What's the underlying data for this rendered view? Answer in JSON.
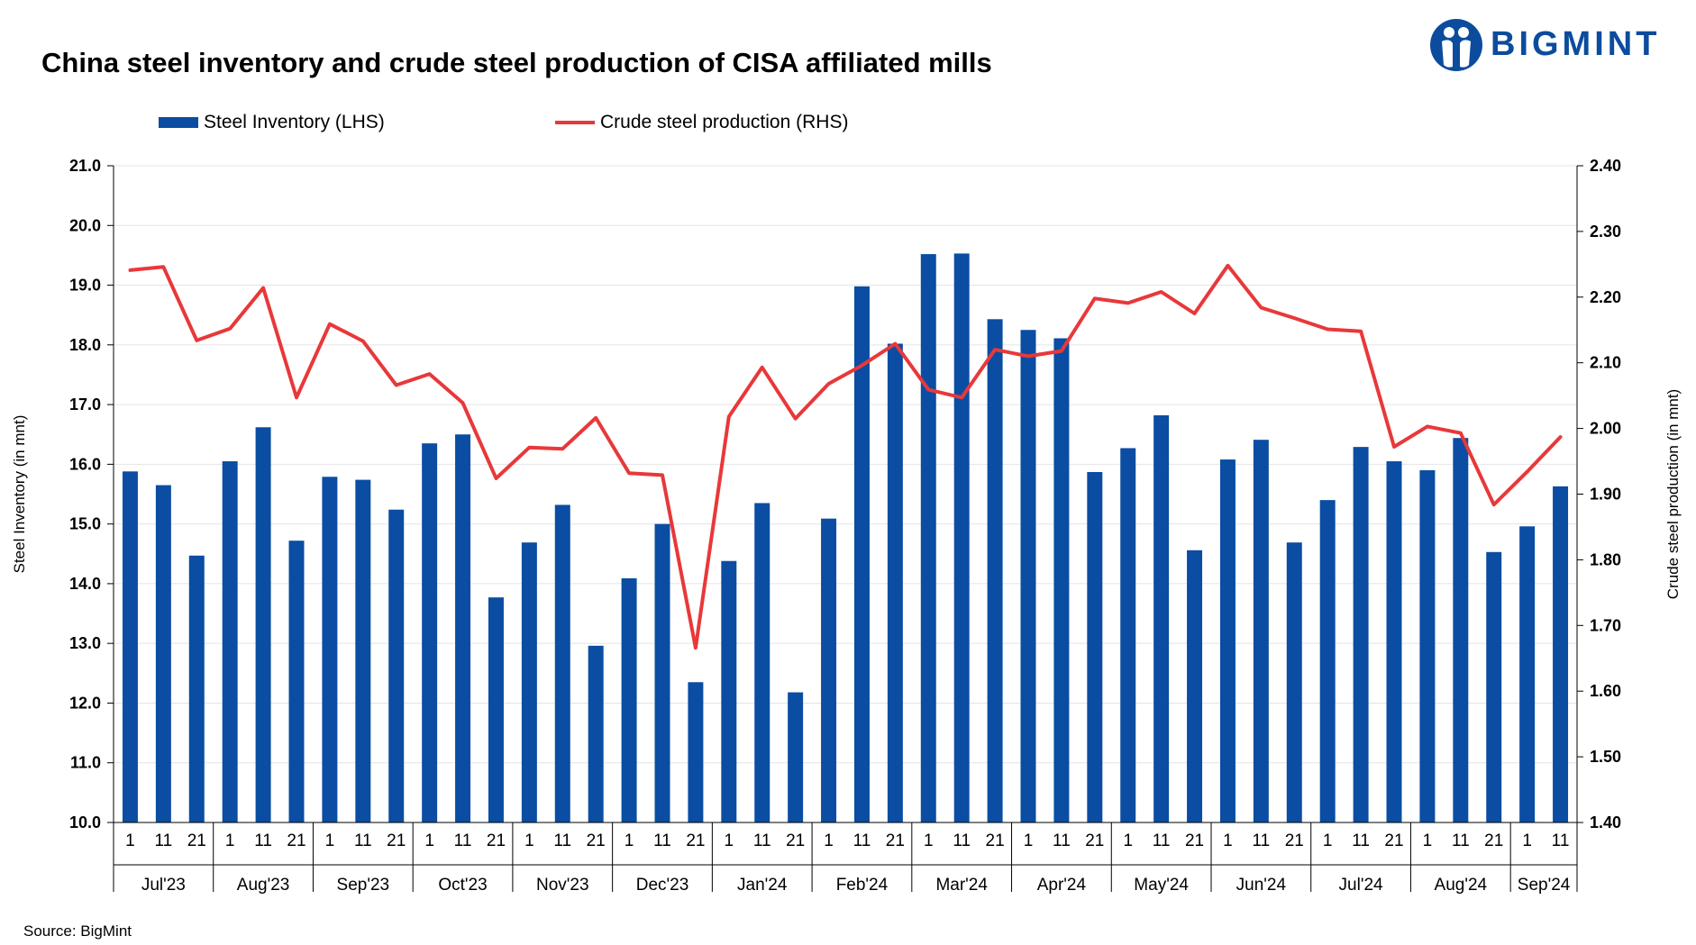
{
  "title": "China steel inventory and crude steel production of CISA affiliated mills",
  "brand": "BIGMINT",
  "source": "Source: BigMint",
  "colors": {
    "bars": "#0a4da2",
    "line": "#e8383a",
    "brand": "#0b4c9d"
  },
  "chart_data": {
    "type": "bar",
    "title": "China steel inventory and crude steel production of CISA affiliated mills",
    "legend_position": "top-left",
    "grid": true,
    "ylabel_left": "Steel Inventory (in mnt)",
    "ylabel_right": "Crude steel production (in mnt)",
    "ylim_left": [
      10,
      21
    ],
    "ylim_right": [
      1.4,
      2.4
    ],
    "yticks_left": [
      "10.0",
      "11.0",
      "12.0",
      "13.0",
      "14.0",
      "15.0",
      "16.0",
      "17.0",
      "18.0",
      "19.0",
      "20.0",
      "21.0"
    ],
    "yticks_right": [
      "1.40",
      "1.50",
      "1.60",
      "1.70",
      "1.80",
      "1.90",
      "2.00",
      "2.10",
      "2.20",
      "2.30",
      "2.40"
    ],
    "months": [
      {
        "label": "Jul'23",
        "days": [
          "1",
          "11",
          "21"
        ]
      },
      {
        "label": "Aug'23",
        "days": [
          "1",
          "11",
          "21"
        ]
      },
      {
        "label": "Sep'23",
        "days": [
          "1",
          "11",
          "21"
        ]
      },
      {
        "label": "Oct'23",
        "days": [
          "1",
          "11",
          "21"
        ]
      },
      {
        "label": "Nov'23",
        "days": [
          "1",
          "11",
          "21"
        ]
      },
      {
        "label": "Dec'23",
        "days": [
          "1",
          "11",
          "21"
        ]
      },
      {
        "label": "Jan'24",
        "days": [
          "1",
          "11",
          "21"
        ]
      },
      {
        "label": "Feb'24",
        "days": [
          "1",
          "11",
          "21"
        ]
      },
      {
        "label": "Mar'24",
        "days": [
          "1",
          "11",
          "21"
        ]
      },
      {
        "label": "Apr'24",
        "days": [
          "1",
          "11",
          "21"
        ]
      },
      {
        "label": "May'24",
        "days": [
          "1",
          "11",
          "21"
        ]
      },
      {
        "label": "Jun'24",
        "days": [
          "1",
          "11",
          "21"
        ]
      },
      {
        "label": "Jul'24",
        "days": [
          "1",
          "11",
          "21"
        ]
      },
      {
        "label": "Aug'24",
        "days": [
          "1",
          "11",
          "21"
        ]
      },
      {
        "label": "Sep'24",
        "days": [
          "1",
          "11"
        ]
      }
    ],
    "series": [
      {
        "name": "Steel Inventory (LHS)",
        "type": "bar",
        "axis": "left",
        "values": [
          15.88,
          15.65,
          14.47,
          16.05,
          16.62,
          14.72,
          15.79,
          15.74,
          15.24,
          16.35,
          16.5,
          13.77,
          14.69,
          15.32,
          12.96,
          14.09,
          15.0,
          12.35,
          14.38,
          15.35,
          12.18,
          15.09,
          18.98,
          18.02,
          19.52,
          19.53,
          18.43,
          18.25,
          18.11,
          15.87,
          16.27,
          16.82,
          14.56,
          16.08,
          16.41,
          14.69,
          15.4,
          16.29,
          16.05,
          15.9,
          16.44,
          14.53,
          14.96,
          15.63
        ]
      },
      {
        "name": "Crude steel production (RHS)",
        "type": "line",
        "axis": "right",
        "values": [
          2.241,
          2.246,
          2.134,
          2.152,
          2.214,
          2.047,
          2.159,
          2.133,
          2.066,
          2.083,
          2.039,
          1.924,
          1.971,
          1.969,
          2.016,
          1.932,
          1.929,
          1.666,
          2.018,
          2.093,
          2.015,
          2.068,
          2.096,
          2.129,
          2.059,
          2.047,
          2.12,
          2.11,
          2.118,
          2.198,
          2.191,
          2.208,
          2.175,
          2.248,
          2.184,
          2.168,
          2.151,
          2.148,
          1.972,
          2.003,
          1.993,
          1.884,
          1.934,
          1.987
        ]
      }
    ]
  }
}
